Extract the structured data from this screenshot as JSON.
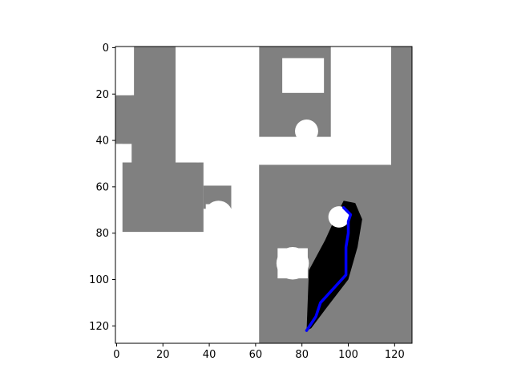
{
  "chart_data": {
    "type": "heatmap",
    "title": "",
    "xlabel": "",
    "ylabel": "",
    "grid_shape": [
      128,
      128
    ],
    "xlim": [
      -0.5,
      127.5
    ],
    "ylim": [
      127.5,
      -0.5
    ],
    "x_ticks": [
      0,
      20,
      40,
      60,
      80,
      100,
      120
    ],
    "y_ticks": [
      0,
      20,
      40,
      60,
      80,
      100,
      120
    ],
    "colors": {
      "free": "#ffffff",
      "occupied": "#808080",
      "explored": "#000000",
      "path": "#0000ff",
      "axes": "#000000"
    },
    "occupied_regions": [
      {
        "x": [
          7,
          26
        ],
        "y": [
          0,
          53
        ]
      },
      {
        "x": [
          0,
          8
        ],
        "y": [
          21,
          42
        ]
      },
      {
        "x": [
          3,
          38
        ],
        "y": [
          50,
          80
        ]
      },
      {
        "x": [
          38,
          50
        ],
        "y": [
          60,
          70
        ]
      },
      {
        "x": [
          62,
          93
        ],
        "y": [
          0,
          39
        ]
      },
      {
        "x": [
          59,
          128
        ],
        "y": [
          51,
          128
        ]
      },
      {
        "x": [
          119,
          128
        ],
        "y": [
          0,
          128
        ]
      }
    ],
    "free_regions": [
      {
        "x": [
          35,
          50
        ],
        "y": [
          0,
          50
        ]
      },
      {
        "x": [
          0,
          8
        ],
        "y": [
          0,
          21
        ]
      },
      {
        "x": [
          26,
          36
        ],
        "y": [
          0,
          50
        ]
      },
      {
        "x": [
          0,
          59
        ],
        "y": [
          80,
          128
        ]
      },
      {
        "x": [
          0,
          3
        ],
        "y": [
          42,
          128
        ]
      },
      {
        "x": [
          50,
          62
        ],
        "y": [
          0,
          128
        ]
      },
      {
        "x": [
          62,
          119
        ],
        "y": [
          39,
          51
        ]
      },
      {
        "x": [
          93,
          119
        ],
        "y": [
          0,
          39
        ]
      },
      {
        "x": [
          72,
          90
        ],
        "y": [
          5,
          20
        ]
      },
      {
        "x": [
          39,
          48
        ],
        "y": [
          68,
          82
        ]
      },
      {
        "x": [
          70,
          83
        ],
        "y": [
          87,
          100
        ]
      }
    ],
    "free_circles": [
      {
        "cx": 82,
        "cy": 36,
        "r": 5
      },
      {
        "cx": 44,
        "cy": 72,
        "r": 6
      },
      {
        "cx": 76,
        "cy": 93,
        "r": 7
      }
    ],
    "explored_region": [
      [
        82,
        122
      ],
      [
        83,
        96
      ],
      [
        90,
        83
      ],
      [
        95,
        72
      ],
      [
        98,
        66
      ],
      [
        103,
        67
      ],
      [
        106,
        74
      ],
      [
        104,
        86
      ],
      [
        100,
        100
      ],
      [
        90,
        113
      ],
      [
        84,
        121
      ]
    ],
    "explored_hole": {
      "cx": 96,
      "cy": 73,
      "r": 4.6
    },
    "path": {
      "x": [
        82,
        86,
        88,
        99,
        99,
        100,
        100,
        101,
        99,
        98
      ],
      "y": [
        122,
        116,
        110,
        98,
        86,
        80,
        75,
        72,
        70,
        69
      ]
    }
  }
}
